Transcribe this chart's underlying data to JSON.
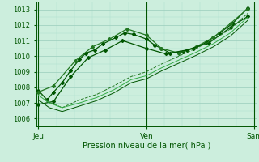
{
  "bg_color": "#cceedd",
  "grid_color_major": "#99ccbb",
  "grid_color_minor": "#aaddcc",
  "line_color_dark": "#005500",
  "xlabel": "Pression niveau de la mer( hPa )",
  "xtick_labels": [
    "Jeu",
    "Ven",
    "Sam"
  ],
  "ylim": [
    1005.5,
    1013.5
  ],
  "yticks": [
    1006,
    1007,
    1008,
    1009,
    1010,
    1011,
    1012,
    1013
  ],
  "series": [
    {
      "x": [
        0.0,
        0.04,
        0.07,
        0.11,
        0.15,
        0.19,
        0.22,
        0.26,
        0.3,
        0.36,
        0.4,
        0.44,
        0.5,
        0.54,
        0.57,
        0.61,
        0.67,
        0.72,
        0.78,
        0.84,
        0.9,
        0.97
      ],
      "y": [
        1007.8,
        1007.2,
        1007.7,
        1008.3,
        1009.1,
        1009.8,
        1010.2,
        1010.4,
        1010.8,
        1011.2,
        1011.5,
        1011.4,
        1011.1,
        1010.7,
        1010.5,
        1010.2,
        1010.3,
        1010.5,
        1010.9,
        1011.5,
        1012.1,
        1013.1
      ],
      "style": "-",
      "marker": "D",
      "ms": 2.0,
      "lw": 0.9,
      "color": "#005500"
    },
    {
      "x": [
        0.0,
        0.07,
        0.17,
        0.25,
        0.33,
        0.41,
        0.5,
        0.57,
        0.65,
        0.73,
        0.81,
        0.89,
        0.97
      ],
      "y": [
        1007.7,
        1008.1,
        1009.7,
        1010.6,
        1011.1,
        1011.75,
        1011.35,
        1010.5,
        1010.2,
        1010.6,
        1011.2,
        1012.1,
        1013.05
      ],
      "style": "-",
      "marker": "D",
      "ms": 2.0,
      "lw": 0.9,
      "color": "#227722"
    },
    {
      "x": [
        0.0,
        0.07,
        0.15,
        0.23,
        0.31,
        0.39,
        0.5,
        0.59,
        0.69,
        0.79,
        0.89,
        0.97
      ],
      "y": [
        1006.9,
        1007.1,
        1008.7,
        1009.9,
        1010.4,
        1011.0,
        1010.5,
        1010.15,
        1010.4,
        1010.85,
        1011.85,
        1012.55
      ],
      "style": "-",
      "marker": "D",
      "ms": 2.0,
      "lw": 0.9,
      "color": "#005500"
    },
    {
      "x": [
        0.0,
        0.05,
        0.11,
        0.19,
        0.27,
        0.35,
        0.43,
        0.5,
        0.57,
        0.65,
        0.73,
        0.81,
        0.89,
        0.97
      ],
      "y": [
        1007.75,
        1007.05,
        1006.7,
        1007.2,
        1007.55,
        1008.1,
        1008.7,
        1009.0,
        1009.5,
        1010.0,
        1010.5,
        1011.05,
        1011.75,
        1012.75
      ],
      "style": "--",
      "marker": "None",
      "ms": 0,
      "lw": 0.7,
      "color": "#227722"
    },
    {
      "x": [
        0.0,
        0.05,
        0.11,
        0.19,
        0.27,
        0.35,
        0.43,
        0.5,
        0.57,
        0.65,
        0.73,
        0.81,
        0.89,
        0.97
      ],
      "y": [
        1007.5,
        1007.0,
        1006.7,
        1007.0,
        1007.35,
        1007.85,
        1008.5,
        1008.75,
        1009.25,
        1009.75,
        1010.25,
        1010.8,
        1011.5,
        1012.5
      ],
      "style": "-",
      "marker": "None",
      "ms": 0,
      "lw": 0.7,
      "color": "#33aa44"
    },
    {
      "x": [
        0.0,
        0.05,
        0.11,
        0.19,
        0.27,
        0.35,
        0.43,
        0.5,
        0.57,
        0.65,
        0.73,
        0.81,
        0.89,
        0.97
      ],
      "y": [
        1007.2,
        1006.7,
        1006.45,
        1006.8,
        1007.15,
        1007.65,
        1008.3,
        1008.55,
        1009.05,
        1009.55,
        1010.05,
        1010.6,
        1011.3,
        1012.3
      ],
      "style": "-",
      "marker": "None",
      "ms": 0,
      "lw": 0.7,
      "color": "#005500"
    }
  ],
  "vline_color": "#005500",
  "vlines_x": [
    0.0,
    0.5,
    1.0
  ]
}
